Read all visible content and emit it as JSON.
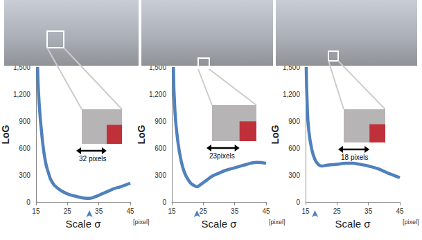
{
  "chart_data": [
    {
      "type": "line",
      "xlabel": "Scale σ",
      "ylabel": "LoG",
      "x_unit": "[pixel]",
      "annotation": "32 pixels",
      "arrow_x": 32,
      "color": "#4f81bd",
      "grid": false,
      "xlim": [
        15,
        45
      ],
      "xticks": [
        15,
        25,
        35,
        45
      ],
      "ylim": [
        0,
        1500
      ],
      "yticks": [
        0,
        300,
        600,
        900,
        1200,
        1500
      ],
      "x": [
        15.5,
        16,
        17,
        18,
        19,
        20,
        22,
        25,
        28,
        30,
        32,
        34,
        36,
        38,
        40,
        42,
        45
      ],
      "values": [
        1500,
        1100,
        700,
        450,
        320,
        230,
        150,
        90,
        60,
        45,
        40,
        60,
        90,
        120,
        150,
        170,
        210
      ]
    },
    {
      "type": "line",
      "xlabel": "Scale σ",
      "ylabel": "LoG",
      "x_unit": "[pixel]",
      "annotation": "23pixels",
      "arrow_x": 23,
      "color": "#4f81bd",
      "grid": false,
      "xlim": [
        15,
        45
      ],
      "xticks": [
        15,
        25,
        35,
        45
      ],
      "ylim": [
        0,
        1500
      ],
      "yticks": [
        0,
        300,
        600,
        900,
        1200,
        1500
      ],
      "x": [
        15.5,
        16,
        17,
        18,
        19,
        20,
        21,
        22,
        23,
        24,
        26,
        28,
        30,
        32,
        35,
        38,
        40,
        42,
        45
      ],
      "values": [
        1500,
        1000,
        650,
        450,
        330,
        260,
        210,
        185,
        170,
        190,
        240,
        290,
        320,
        350,
        380,
        410,
        430,
        440,
        430
      ]
    },
    {
      "type": "line",
      "xlabel": "Scale σ",
      "ylabel": "LoG",
      "x_unit": "[pixel]",
      "annotation": "18 pixels",
      "arrow_x": 18,
      "color": "#4f81bd",
      "grid": false,
      "xlim": [
        15,
        45
      ],
      "xticks": [
        15,
        25,
        35,
        45
      ],
      "ylim": [
        0,
        1500
      ],
      "yticks": [
        0,
        300,
        600,
        900,
        1200,
        1500
      ],
      "x": [
        15.2,
        15.5,
        16,
        17,
        18,
        19,
        20,
        22,
        25,
        28,
        30,
        32,
        35,
        38,
        40,
        42,
        45
      ],
      "values": [
        1500,
        1100,
        800,
        580,
        470,
        420,
        400,
        410,
        420,
        430,
        430,
        420,
        400,
        370,
        340,
        310,
        270
      ]
    }
  ]
}
